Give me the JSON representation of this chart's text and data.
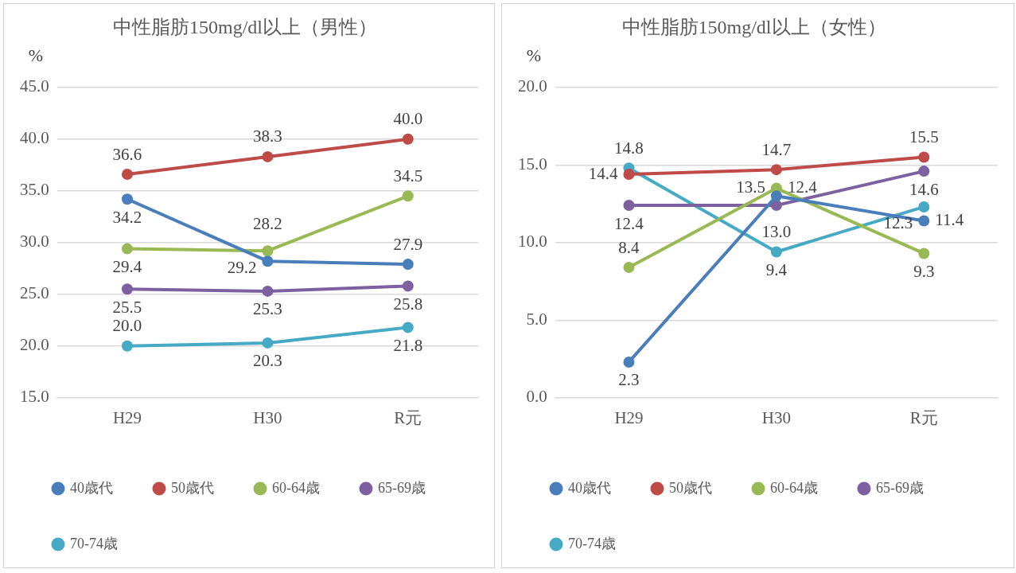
{
  "chart_data": [
    {
      "type": "line",
      "title": "中性脂肪150mg/dl以上（男性）",
      "ylabel": "%",
      "categories": [
        "H29",
        "H30",
        "R元"
      ],
      "ylim": [
        15,
        45
      ],
      "yticks": [
        {
          "value": 15,
          "label": "15.0"
        },
        {
          "value": 20,
          "label": "20.0"
        },
        {
          "value": 25,
          "label": "25.0"
        },
        {
          "value": 30,
          "label": "30.0"
        },
        {
          "value": 35,
          "label": "35.0"
        },
        {
          "value": 40,
          "label": "40.0"
        },
        {
          "value": 45,
          "label": "45.0"
        }
      ],
      "grid": "y",
      "legend": "bottom",
      "marker": "circle",
      "series": [
        {
          "name": "40歳代",
          "color": "#4a7ebb",
          "values": [
            34.2,
            28.2,
            27.9
          ],
          "value_labels": [
            "34.2",
            "28.2",
            "27.9"
          ]
        },
        {
          "name": "50歳代",
          "color": "#be4b48",
          "values": [
            36.6,
            38.3,
            40.0
          ],
          "value_labels": [
            "36.6",
            "38.3",
            "40.0"
          ]
        },
        {
          "name": "60-64歳",
          "color": "#98b954",
          "values": [
            29.4,
            29.2,
            34.5
          ],
          "value_labels": [
            "29.4",
            "29.2",
            "34.5"
          ]
        },
        {
          "name": "65-69歳",
          "color": "#7d60a0",
          "values": [
            25.5,
            25.3,
            25.8
          ],
          "value_labels": [
            "25.5",
            "25.3",
            "25.8"
          ]
        },
        {
          "name": "70-74歳",
          "color": "#46aac5",
          "values": [
            20.0,
            20.3,
            21.8
          ],
          "value_labels": [
            "20.0",
            "20.3",
            "21.8"
          ]
        }
      ]
    },
    {
      "type": "line",
      "title": "中性脂肪150mg/dl以上（女性）",
      "ylabel": "%",
      "categories": [
        "H29",
        "H30",
        "R元"
      ],
      "ylim": [
        0,
        20
      ],
      "yticks": [
        {
          "value": 0,
          "label": "0.0"
        },
        {
          "value": 5,
          "label": "5.0"
        },
        {
          "value": 10,
          "label": "10.0"
        },
        {
          "value": 15,
          "label": "15.0"
        },
        {
          "value": 20,
          "label": "20.0"
        }
      ],
      "grid": "y",
      "legend": "bottom",
      "marker": "circle",
      "series": [
        {
          "name": "40歳代",
          "color": "#4a7ebb",
          "values": [
            2.3,
            13.0,
            11.4
          ],
          "value_labels": [
            "2.3",
            "13.0",
            "11.4"
          ]
        },
        {
          "name": "50歳代",
          "color": "#be4b48",
          "values": [
            14.4,
            14.7,
            15.5
          ],
          "value_labels": [
            "14.4",
            "14.7",
            "15.5"
          ]
        },
        {
          "name": "60-64歳",
          "color": "#98b954",
          "values": [
            8.4,
            13.5,
            9.3
          ],
          "value_labels": [
            "8.4",
            "13.5",
            "9.3"
          ]
        },
        {
          "name": "65-69歳",
          "color": "#7d60a0",
          "values": [
            12.4,
            12.4,
            14.6
          ],
          "value_labels": [
            "12.4",
            "12.4",
            "14.6"
          ]
        },
        {
          "name": "70-74歳",
          "color": "#46aac5",
          "values": [
            14.8,
            9.4,
            12.3
          ],
          "value_labels": [
            "14.8",
            "9.4",
            "12.3"
          ]
        }
      ]
    }
  ]
}
